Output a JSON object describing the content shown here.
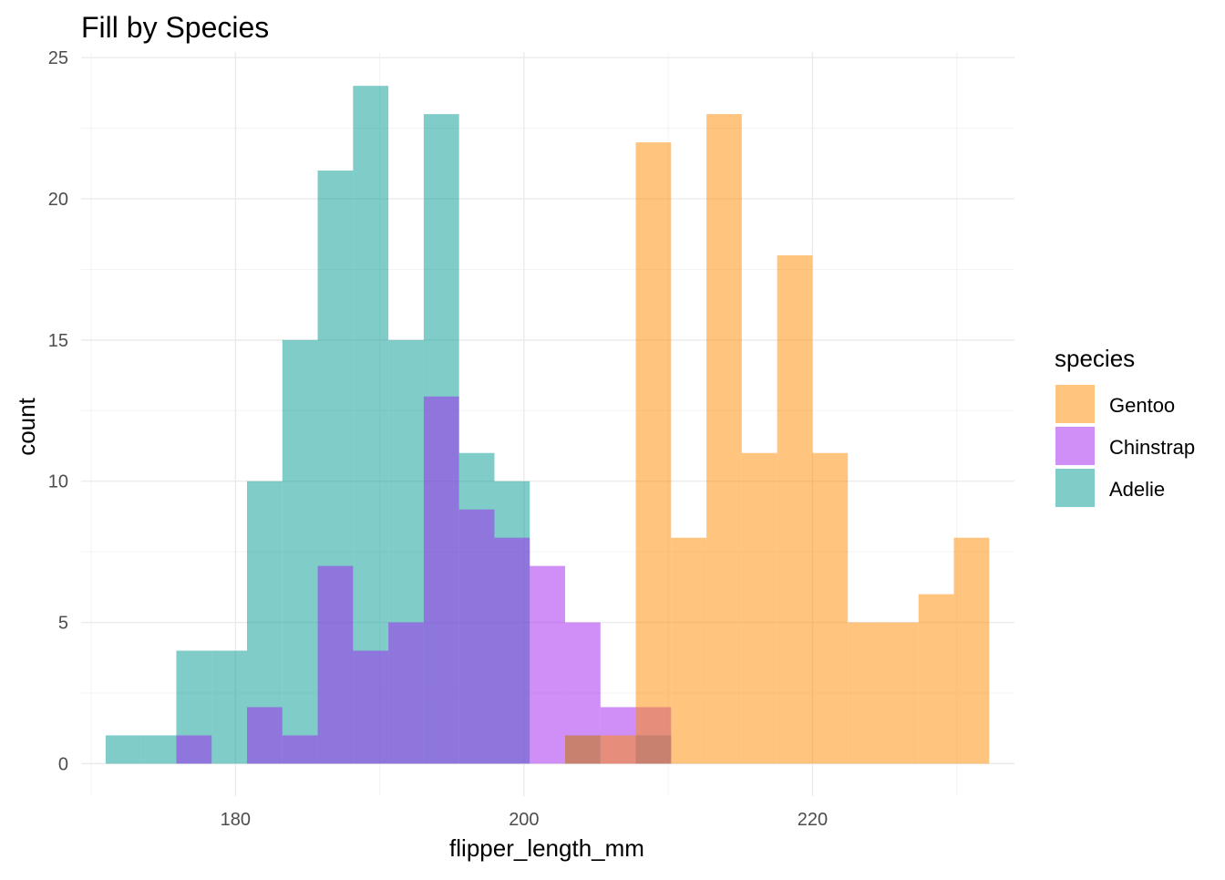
{
  "chart_data": {
    "type": "bar",
    "subtype": "overlapping histogram",
    "title": "Fill by Species",
    "xlabel": "flipper_length_mm",
    "ylabel": "count",
    "xlim": [
      169.3,
      234.0
    ],
    "ylim": [
      -1.15,
      25.2
    ],
    "x_ticks": [
      180,
      200,
      220
    ],
    "x_tick_labels": [
      "180",
      "200",
      "220"
    ],
    "y_ticks": [
      0,
      5,
      10,
      15,
      20,
      25
    ],
    "y_tick_labels": [
      "0",
      "5",
      "10",
      "15",
      "20",
      "25"
    ],
    "grid": true,
    "bin_width": 2.45,
    "bin_starts": [
      171.0,
      173.45,
      175.9,
      178.35,
      180.8,
      183.25,
      185.7,
      188.15,
      190.6,
      193.05,
      195.5,
      197.95,
      200.4,
      202.85,
      205.3,
      207.75,
      210.2,
      212.65,
      215.1,
      217.55,
      220.0,
      222.45,
      224.9,
      227.35,
      229.8
    ],
    "series": [
      {
        "name": "Adelie",
        "color": "#009a93",
        "opacity": 0.5,
        "values": [
          1,
          1,
          4,
          4,
          10,
          15,
          21,
          24,
          15,
          23,
          11,
          10,
          0,
          1,
          0,
          1,
          0,
          0,
          0,
          0,
          0,
          0,
          0,
          0,
          0
        ]
      },
      {
        "name": "Chinstrap",
        "color": "#a020f0",
        "opacity": 0.5,
        "values": [
          0,
          0,
          1,
          0,
          2,
          1,
          7,
          4,
          5,
          13,
          9,
          8,
          7,
          5,
          2,
          2,
          0,
          0,
          0,
          0,
          0,
          0,
          0,
          0,
          0
        ]
      },
      {
        "name": "Gentoo",
        "color": "#ff8c00",
        "opacity": 0.5,
        "values": [
          0,
          0,
          0,
          0,
          0,
          0,
          0,
          0,
          0,
          0,
          0,
          0,
          0,
          1,
          1,
          22,
          8,
          23,
          11,
          18,
          11,
          5,
          5,
          6,
          8
        ]
      }
    ],
    "legend": {
      "title": "species",
      "placement": "right",
      "items": [
        {
          "name": "Gentoo",
          "color": "#ff8c00"
        },
        {
          "name": "Chinstrap",
          "color": "#a020f0"
        },
        {
          "name": "Adelie",
          "color": "#009a93"
        }
      ]
    }
  }
}
